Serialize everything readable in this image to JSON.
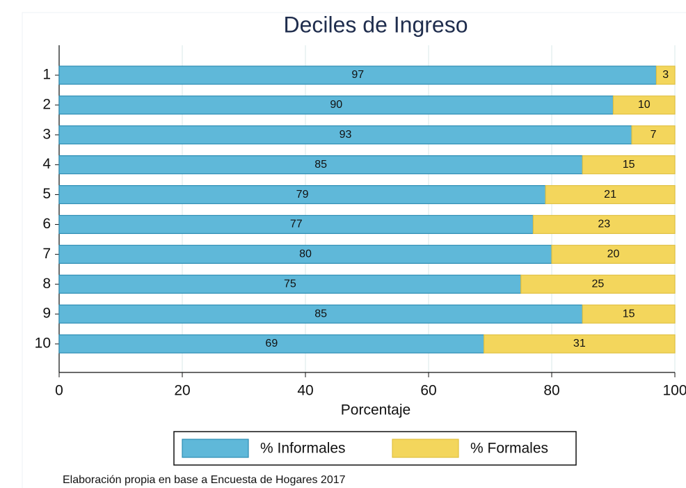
{
  "chart_data": {
    "type": "stacked-bar-horizontal",
    "title": "Deciles de Ingreso",
    "categories": [
      "1",
      "2",
      "3",
      "4",
      "5",
      "6",
      "7",
      "8",
      "9",
      "10"
    ],
    "series": [
      {
        "name": "% Informales",
        "color": "#5fb8d9",
        "values": [
          97,
          90,
          93,
          85,
          79,
          77,
          80,
          75,
          85,
          69
        ]
      },
      {
        "name": "% Formales",
        "color": "#f3d65c",
        "values": [
          3,
          10,
          7,
          15,
          21,
          23,
          20,
          25,
          15,
          31
        ]
      }
    ],
    "xlim": [
      0,
      100
    ],
    "xticks": [
      0,
      20,
      40,
      60,
      80,
      100
    ],
    "grid": true,
    "xlabel": "Porcentaje",
    "legend": "bottom",
    "caption": "Elaboración propia en base a Encuesta de Hogares 2017"
  }
}
